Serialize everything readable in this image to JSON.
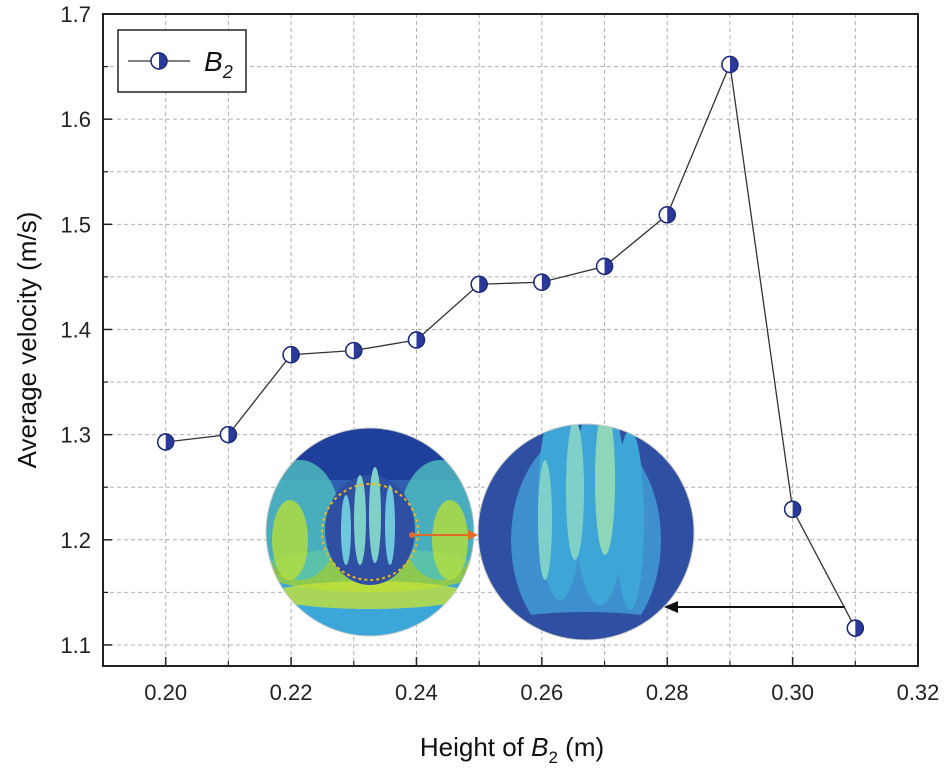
{
  "chart_data": {
    "type": "line",
    "title": "",
    "xlabel_prefix": "Height of ",
    "xlabel_var": "B",
    "xlabel_sub": "2",
    "xlabel_suffix": " (m)",
    "ylabel": "Average velocity (m/s)",
    "xlim": [
      0.19,
      0.32
    ],
    "ylim": [
      1.08,
      1.7
    ],
    "x_ticks": [
      0.2,
      0.22,
      0.24,
      0.26,
      0.28,
      0.3,
      0.32
    ],
    "x_tick_labels": [
      "0.20",
      "0.22",
      "0.24",
      "0.26",
      "0.28",
      "0.30",
      "0.32"
    ],
    "y_ticks": [
      1.1,
      1.2,
      1.3,
      1.4,
      1.5,
      1.6,
      1.7
    ],
    "y_tick_labels": [
      "1.1",
      "1.2",
      "1.3",
      "1.4",
      "1.5",
      "1.6",
      "1.7"
    ],
    "grid": true,
    "legend_position": "top-left",
    "series": [
      {
        "name_var": "B",
        "name_sub": "2",
        "color": "#333333",
        "marker_color": "#2b3a9a",
        "x": [
          0.2,
          0.21,
          0.22,
          0.23,
          0.24,
          0.25,
          0.26,
          0.27,
          0.28,
          0.29,
          0.3,
          0.31
        ],
        "values": [
          1.293,
          1.3,
          1.376,
          1.38,
          1.39,
          1.443,
          1.445,
          1.46,
          1.509,
          1.652,
          1.229,
          1.116
        ]
      }
    ],
    "annotation": {
      "type": "arrow",
      "from_point_index": 11,
      "description": "velocity contour inset"
    }
  },
  "colors": {
    "line": "#333333",
    "marker": "#2b3a9a",
    "grid": "#b0b0b0",
    "inset_dark": "#2f4fa3",
    "inset_mid": "#3ea6d6",
    "inset_light": "#7fd0c8",
    "inset_green": "#9ccf3a"
  }
}
